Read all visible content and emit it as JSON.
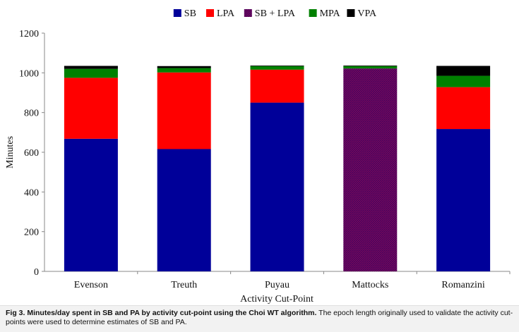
{
  "chart_data": {
    "type": "bar",
    "stacked": true,
    "categories": [
      "Evenson",
      "Treuth",
      "Puyau",
      "Mattocks",
      "Romanzini"
    ],
    "series": [
      {
        "name": "SB",
        "color": "#000099",
        "values": [
          668,
          616,
          850,
          0,
          717
        ]
      },
      {
        "name": "LPA",
        "color": "#ff0000",
        "values": [
          307,
          386,
          166,
          0,
          211
        ]
      },
      {
        "name": "SB + LPA",
        "color": "#660066",
        "pattern": "hatched",
        "values": [
          0,
          0,
          0,
          1022,
          0
        ]
      },
      {
        "name": "MPA",
        "color": "#008000",
        "values": [
          45,
          22,
          18,
          12,
          57
        ]
      },
      {
        "name": "VPA",
        "color": "#000000",
        "values": [
          15,
          10,
          3,
          3,
          50
        ]
      }
    ],
    "xlabel": "Activity Cut-Point",
    "ylabel": "Minutes",
    "ylim": [
      0,
      1200
    ],
    "yticks": [
      0,
      200,
      400,
      600,
      800,
      1000,
      1200
    ],
    "legend_position": "top",
    "grid": false
  },
  "caption": {
    "bold": "Fig 3.  Minutes/day spent in SB and PA by activity cut-point using the Choi WT algorithm.",
    "text": " The epoch length originally used to validate the activity cut-points were used to determine estimates of SB and PA."
  }
}
